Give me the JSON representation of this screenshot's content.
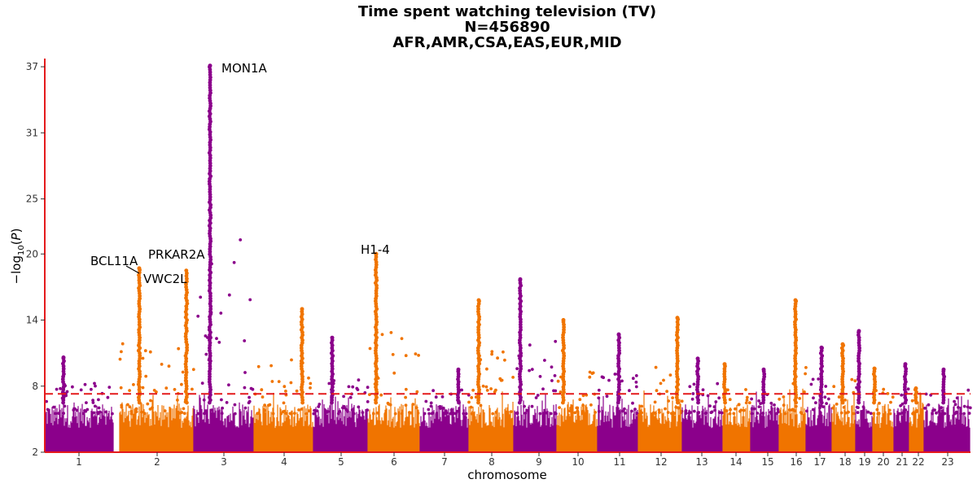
{
  "chart_data": {
    "type": "scatter",
    "subtype": "manhattan",
    "title": "Time spent watching television (TV)",
    "subtitle_lines": [
      "N=456890",
      "AFR,AMR,CSA,EAS,EUR,MID"
    ],
    "xlabel": "chromosome",
    "ylabel": "-log10(P)",
    "ylim": [
      2,
      37.3
    ],
    "yticks": [
      2,
      8,
      14,
      20,
      25,
      31,
      37
    ],
    "significance_line": {
      "y": 7.3,
      "color": "#e41a1c",
      "style": "dashed"
    },
    "colors": [
      "#8b008b",
      "#f07400"
    ],
    "chromosomes": [
      {
        "label": "1",
        "peak": 10.6
      },
      {
        "label": "2",
        "peak": 18.7
      },
      {
        "label": "3",
        "peak": 37.1
      },
      {
        "label": "4",
        "peak": 15.0
      },
      {
        "label": "5",
        "peak": 12.4
      },
      {
        "label": "6",
        "peak": 20.0
      },
      {
        "label": "7",
        "peak": 9.5
      },
      {
        "label": "8",
        "peak": 15.8
      },
      {
        "label": "9",
        "peak": 17.7
      },
      {
        "label": "10",
        "peak": 14.0
      },
      {
        "label": "11",
        "peak": 12.7
      },
      {
        "label": "12",
        "peak": 14.2
      },
      {
        "label": "13",
        "peak": 10.5
      },
      {
        "label": "14",
        "peak": 10.0
      },
      {
        "label": "15",
        "peak": 9.5
      },
      {
        "label": "16",
        "peak": 15.8
      },
      {
        "label": "17",
        "peak": 11.5
      },
      {
        "label": "18",
        "peak": 11.8
      },
      {
        "label": "19",
        "peak": 13.0
      },
      {
        "label": "20",
        "peak": 9.6
      },
      {
        "label": "21",
        "peak": 10.0
      },
      {
        "label": "22",
        "peak": 7.8
      },
      {
        "label": "23",
        "peak": 9.5
      }
    ],
    "annotations": [
      {
        "label": "BCL11A",
        "chromosome": "2",
        "y": 18.5
      },
      {
        "label": "VWC2L",
        "chromosome": "2",
        "y": 18.0
      },
      {
        "label": "PRKAR2A",
        "chromosome": "3",
        "y": 18.7
      },
      {
        "label": "MON1A",
        "chromosome": "3",
        "y": 37.1
      },
      {
        "label": "H1-4",
        "chromosome": "6",
        "y": 20.0
      }
    ]
  }
}
